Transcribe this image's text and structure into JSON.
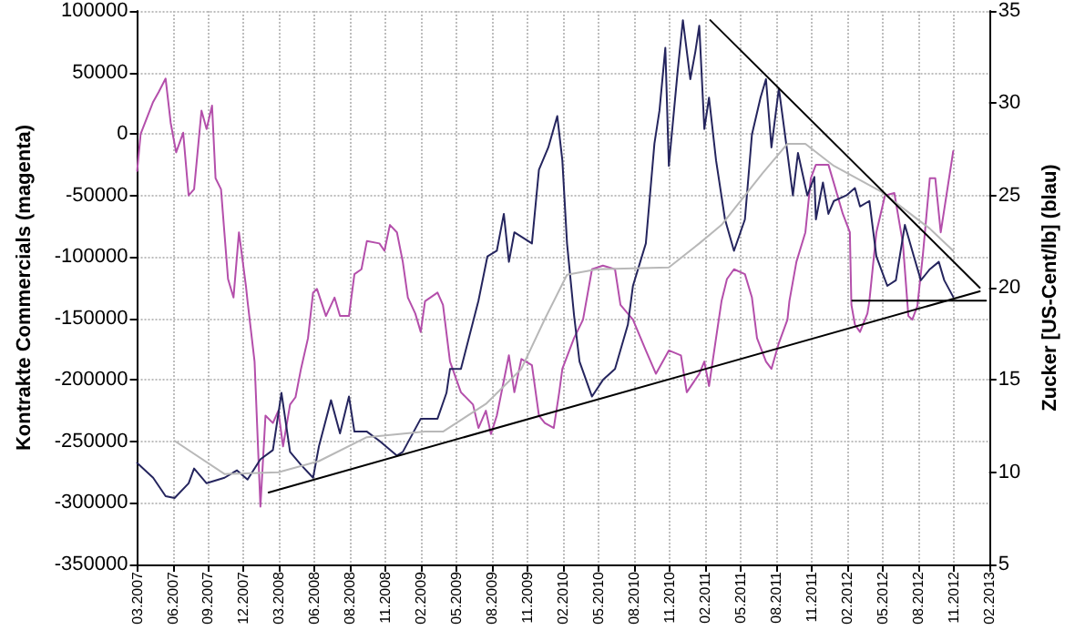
{
  "chart_data": {
    "type": "line",
    "ylabel": "Kontrakte Commercials (magenta)",
    "y2label": "Zucker [US-Cent/lb] (blau)",
    "xlim": [
      "2007-03-01",
      "2013-02-21"
    ],
    "xticks": [
      {
        "value": "2007-03-01",
        "label": "03.2007"
      },
      {
        "value": "2007-05-31",
        "label": "06.2007"
      },
      {
        "value": "2007-08-30",
        "label": "09.2007"
      },
      {
        "value": "2007-11-29",
        "label": "12.2007"
      },
      {
        "value": "2008-02-28",
        "label": "03.2008"
      },
      {
        "value": "2008-05-29",
        "label": "06.2008"
      },
      {
        "value": "2008-08-28",
        "label": "08.2008"
      },
      {
        "value": "2008-11-27",
        "label": "11.2008"
      },
      {
        "value": "2009-02-26",
        "label": "02.2009"
      },
      {
        "value": "2009-05-28",
        "label": "05.2009"
      },
      {
        "value": "2009-08-27",
        "label": "08.2009"
      },
      {
        "value": "2009-11-26",
        "label": "11.2009"
      },
      {
        "value": "2010-02-25",
        "label": "02.2010"
      },
      {
        "value": "2010-05-27",
        "label": "05.2010"
      },
      {
        "value": "2010-08-26",
        "label": "08.2010"
      },
      {
        "value": "2010-11-25",
        "label": "11.2010"
      },
      {
        "value": "2011-02-24",
        "label": "02.2011"
      },
      {
        "value": "2011-05-26",
        "label": "05.2011"
      },
      {
        "value": "2011-08-25",
        "label": "08.2011"
      },
      {
        "value": "2011-11-24",
        "label": "11.2011"
      },
      {
        "value": "2012-02-23",
        "label": "02.2012"
      },
      {
        "value": "2012-05-24",
        "label": "05.2012"
      },
      {
        "value": "2012-08-23",
        "label": "08.2012"
      },
      {
        "value": "2012-11-22",
        "label": "11.2012"
      },
      {
        "value": "2013-02-21",
        "label": "02.2013"
      }
    ],
    "ylim": [
      -350000,
      100000
    ],
    "yticks": [
      -350000,
      -300000,
      -250000,
      -200000,
      -150000,
      -100000,
      -50000,
      0,
      50000,
      100000
    ],
    "y2lim": [
      5,
      35
    ],
    "y2ticks": [
      5,
      10,
      15,
      20,
      25,
      30,
      35
    ],
    "grid": true,
    "marker": "none",
    "series": [
      {
        "color": "#b44fab",
        "x": [
          "2007-03-01",
          "2007-03-10",
          "2007-04-11",
          "2007-04-25",
          "2007-05-13",
          "2007-05-26",
          "2007-06-09",
          "2007-06-27",
          "2007-07-11",
          "2007-07-25",
          "2007-08-13",
          "2007-08-26",
          "2007-09-09",
          "2007-09-18",
          "2007-10-02",
          "2007-10-20",
          "2007-11-03",
          "2007-11-17",
          "2007-12-05",
          "2007-12-09",
          "2007-12-27",
          "2008-01-11",
          "2008-01-24",
          "2008-02-12",
          "2008-02-26",
          "2008-03-09",
          "2008-03-27",
          "2008-04-10",
          "2008-04-24",
          "2008-05-12",
          "2008-05-25",
          "2008-06-04",
          "2008-06-27",
          "2008-07-19",
          "2008-08-02",
          "2008-08-25",
          "2008-09-08",
          "2008-09-26",
          "2008-10-10",
          "2008-11-11",
          "2008-11-24",
          "2008-12-08",
          "2008-12-26",
          "2009-01-10",
          "2009-01-23",
          "2009-02-11",
          "2009-02-25",
          "2009-03-08",
          "2009-04-09",
          "2009-04-23",
          "2009-05-11",
          "2009-06-08",
          "2009-07-09",
          "2009-07-23",
          "2009-08-11",
          "2009-08-24",
          "2009-09-08",
          "2009-10-09",
          "2009-10-23",
          "2009-11-10",
          "2009-12-07",
          "2009-12-25",
          "2010-01-09",
          "2010-02-01",
          "2010-02-15",
          "2010-02-23",
          "2010-03-25",
          "2010-04-17",
          "2010-05-10",
          "2010-06-07",
          "2010-07-08",
          "2010-07-22",
          "2010-08-23",
          "2010-09-25",
          "2010-10-21",
          "2010-11-23",
          "2010-12-24",
          "2011-01-08",
          "2011-02-09",
          "2011-02-22",
          "2011-03-06",
          "2011-03-24",
          "2011-04-07",
          "2011-04-21",
          "2011-05-09",
          "2011-06-06",
          "2011-06-24",
          "2011-07-07",
          "2011-07-30",
          "2011-08-13",
          "2011-09-01",
          "2011-09-23",
          "2011-09-28",
          "2011-10-16",
          "2011-11-08",
          "2011-11-22",
          "2011-12-05",
          "2012-01-06",
          "2012-01-20",
          "2012-02-12",
          "2012-03-01",
          "2012-03-05",
          "2012-03-14",
          "2012-03-27",
          "2012-04-15",
          "2012-04-20",
          "2012-05-08",
          "2012-05-30",
          "2012-06-23",
          "2012-07-15",
          "2012-07-29",
          "2012-08-08",
          "2012-08-21",
          "2012-09-04",
          "2012-09-22",
          "2012-10-06",
          "2012-10-20",
          "2012-11-21"
        ],
        "values": [
          -30000,
          0,
          26000,
          34000,
          45000,
          9000,
          -15000,
          1000,
          -50000,
          -45000,
          19000,
          4000,
          23000,
          -36000,
          -45000,
          -118000,
          -133000,
          -80000,
          -124000,
          -136000,
          -185000,
          -303000,
          -229000,
          -235000,
          -225000,
          -254000,
          -220000,
          -214000,
          -191000,
          -166000,
          -129000,
          -126000,
          -148000,
          -133000,
          -148000,
          -148000,
          -114000,
          -110000,
          -87000,
          -89000,
          -95000,
          -74000,
          -80000,
          -104000,
          -133000,
          -146000,
          -161000,
          -136000,
          -129000,
          -139000,
          -185000,
          -210000,
          -220000,
          -239000,
          -225000,
          -244000,
          -229000,
          -180000,
          -210000,
          -183000,
          -188000,
          -229000,
          -235000,
          -239000,
          -210000,
          -191000,
          -166000,
          -151000,
          -110000,
          -107000,
          -110000,
          -139000,
          -151000,
          -176000,
          -195000,
          -176000,
          -180000,
          -210000,
          -195000,
          -185000,
          -205000,
          -166000,
          -136000,
          -118000,
          -110000,
          -114000,
          -133000,
          -166000,
          -185000,
          -191000,
          -170000,
          -151000,
          -136000,
          -104000,
          -80000,
          -36000,
          -25000,
          -25000,
          -40000,
          -65000,
          -80000,
          -139000,
          -155000,
          -161000,
          -146000,
          -136000,
          -80000,
          -50000,
          -48000,
          -89000,
          -148000,
          -151000,
          -140000,
          -99000,
          -36000,
          -36000,
          -80000,
          -14000
        ]
      },
      {
        "color": "#25255e",
        "axis": "y2",
        "x": [
          "2007-03-01",
          "2007-04-11",
          "2007-05-13",
          "2007-06-05",
          "2007-07-11",
          "2007-07-25",
          "2007-08-26",
          "2007-10-11",
          "2007-11-12",
          "2007-12-09",
          "2008-01-11",
          "2008-02-12",
          "2008-03-05",
          "2008-03-27",
          "2008-04-24",
          "2008-05-25",
          "2008-06-09",
          "2008-07-10",
          "2008-08-02",
          "2008-08-25",
          "2008-09-08",
          "2008-10-10",
          "2008-11-11",
          "2008-12-26",
          "2009-01-10",
          "2009-02-25",
          "2009-04-09",
          "2009-05-02",
          "2009-05-11",
          "2009-06-08",
          "2009-07-23",
          "2009-08-15",
          "2009-09-08",
          "2009-09-26",
          "2009-10-09",
          "2009-10-23",
          "2009-12-07",
          "2009-12-25",
          "2010-01-18",
          "2010-02-10",
          "2010-02-23",
          "2010-03-07",
          "2010-03-25",
          "2010-04-08",
          "2010-05-10",
          "2010-06-07",
          "2010-07-08",
          "2010-08-10",
          "2010-08-23",
          "2010-09-25",
          "2010-10-17",
          "2010-10-30",
          "2010-11-14",
          "2010-11-23",
          "2010-12-15",
          "2010-12-29",
          "2011-01-17",
          "2011-01-30",
          "2011-02-09",
          "2011-02-22",
          "2011-03-06",
          "2011-03-24",
          "2011-04-16",
          "2011-05-09",
          "2011-06-06",
          "2011-06-24",
          "2011-07-16",
          "2011-07-30",
          "2011-08-13",
          "2011-09-01",
          "2011-09-23",
          "2011-10-07",
          "2011-10-20",
          "2011-11-13",
          "2011-12-01",
          "2011-12-05",
          "2011-12-23",
          "2012-01-06",
          "2012-01-20",
          "2012-02-21",
          "2012-03-14",
          "2012-03-27",
          "2012-04-20",
          "2012-05-08",
          "2012-06-05",
          "2012-06-27",
          "2012-07-20",
          "2012-08-12",
          "2012-08-30",
          "2012-09-22",
          "2012-10-15",
          "2012-10-29",
          "2012-11-21"
        ],
        "values": [
          10.5,
          9.7,
          8.7,
          8.6,
          9.4,
          10.2,
          9.4,
          9.7,
          10.1,
          9.6,
          10.7,
          11.2,
          14.3,
          11.1,
          10.4,
          9.7,
          11.4,
          13.9,
          12.1,
          14.1,
          12.2,
          12.2,
          11.7,
          10.9,
          11.1,
          12.9,
          12.9,
          14.3,
          15.6,
          15.6,
          19.3,
          21.7,
          22.0,
          24.0,
          21.4,
          23.0,
          22.4,
          26.4,
          27.6,
          29.3,
          26.9,
          22.4,
          18.5,
          16.0,
          14.1,
          15.0,
          15.6,
          18.0,
          20.1,
          22.4,
          27.8,
          29.6,
          33.0,
          26.6,
          31.6,
          34.5,
          31.3,
          32.8,
          34.2,
          28.6,
          30.3,
          26.9,
          23.7,
          22.0,
          23.7,
          28.3,
          30.3,
          31.3,
          27.6,
          30.8,
          27.3,
          25.0,
          27.3,
          25.0,
          26.0,
          23.7,
          25.7,
          24.0,
          24.7,
          25.0,
          25.4,
          24.4,
          24.7,
          21.7,
          20.1,
          20.4,
          23.4,
          21.7,
          20.4,
          21.0,
          21.4,
          20.4,
          19.5
        ]
      },
      {
        "color": "#b8b8b8",
        "axis": "y2",
        "x": [
          "2007-06-05",
          "2007-10-11",
          "2008-02-26",
          "2008-06-09",
          "2008-10-10",
          "2009-03-08",
          "2009-04-23",
          "2009-08-11",
          "2009-11-10",
          "2010-01-09",
          "2010-03-07",
          "2010-05-23",
          "2010-11-23",
          "2011-02-09",
          "2011-04-07",
          "2011-07-21",
          "2011-09-23",
          "2011-11-08",
          "2012-01-20",
          "2012-05-21",
          "2012-09-22",
          "2012-11-21"
        ],
        "values": [
          11.7,
          9.9,
          10.0,
          10.6,
          11.9,
          12.2,
          12.2,
          13.7,
          15.6,
          18.3,
          20.7,
          21.0,
          21.1,
          22.4,
          23.4,
          26.2,
          27.8,
          27.8,
          26.6,
          25.2,
          23.2,
          22.0
        ]
      },
      {
        "color": "#000000",
        "axis": "y2",
        "x": [
          "2008-02-01",
          "2013-01-28"
        ],
        "values": [
          8.9,
          19.8
        ]
      },
      {
        "color": "#000000",
        "axis": "y2",
        "x": [
          "2011-03-09",
          "2013-01-28"
        ],
        "values": [
          34.5,
          20.0
        ]
      },
      {
        "color": "#000000",
        "axis": "y2",
        "x": [
          "2012-03-07",
          "2013-02-13"
        ],
        "values": [
          19.3,
          19.3
        ]
      }
    ]
  }
}
